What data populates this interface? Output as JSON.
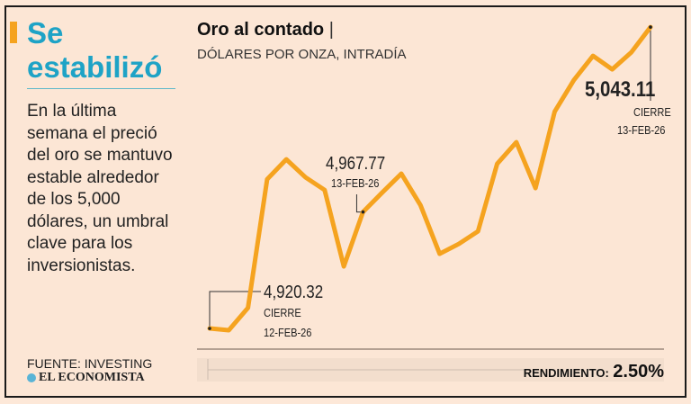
{
  "sidebar": {
    "headline_line1": "Se",
    "headline_line2": "estabilizó",
    "body": "En la última semana el preció del oro se mantuvo estable alrededor de los 5,000 dólares, un umbral clave para los inversionistas.",
    "source": "FUENTE: INVESTING",
    "logo": "EL ECONOMISTA"
  },
  "colors": {
    "line": "#f5a31f",
    "headline": "#1ea3c6"
  },
  "chart_data": {
    "type": "line",
    "title": "Oro al contado",
    "title_sep": "|",
    "subtitle": "DÓLARES POR ONZA, INTRADÍA",
    "ylim": [
      4911.9,
      5046.8
    ],
    "values": [
      4920.32,
      4919.6,
      4928.7,
      4981.1,
      4989.2,
      4981.9,
      4976.7,
      4945.6,
      4967.77,
      4975.66,
      4983.36,
      4970.53,
      4950.74,
      4954.77,
      4959.9,
      4987.39,
      4996.19,
      4977.49,
      5008.65,
      5021.47,
      5031.37,
      5025.87,
      5032.84,
      5043.11
    ],
    "annotations": [
      {
        "index": 0,
        "value": "4,920.32",
        "line2": "CIERRE",
        "line3": "12-FEB-26"
      },
      {
        "index": 8,
        "value": "4,967.77",
        "line2": "13-FEB-26"
      },
      {
        "index": 23,
        "value": "5,043.11",
        "line2": "CIERRE",
        "line3": "13-FEB-26"
      }
    ],
    "footer_label": "RENDIMIENTO:",
    "footer_value": "2.50%"
  }
}
